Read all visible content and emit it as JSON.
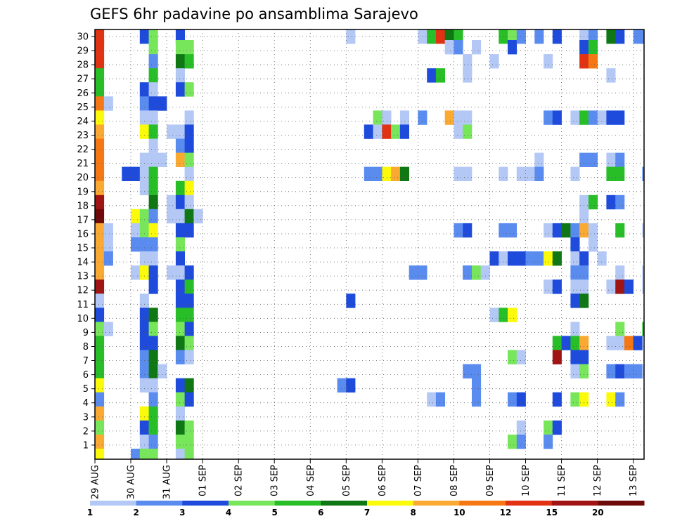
{
  "chart_data": {
    "type": "heatmap",
    "title": "GEFS 6hr padavine po ansamblima Sarajevo",
    "xlabel": "",
    "ylabel": "",
    "y_ticks": [
      "1",
      "2",
      "3",
      "4",
      "5",
      "6",
      "7",
      "8",
      "9",
      "10",
      "11",
      "12",
      "13",
      "14",
      "15",
      "16",
      "17",
      "18",
      "19",
      "20",
      "21",
      "22",
      "23",
      "24",
      "25",
      "26",
      "27",
      "28",
      "29",
      "30"
    ],
    "x_ticks": [
      "29 AUG",
      "30 AUG",
      "31 AUG",
      "01 SEP",
      "02 SEP",
      "03 SEP",
      "04 SEP",
      "05 SEP",
      "06 SEP",
      "07 SEP",
      "08 SEP",
      "09 SEP",
      "10 SEP",
      "11 SEP",
      "12 SEP",
      "13 SEP"
    ],
    "timesteps_per_day": 4,
    "num_steps": 61,
    "grid": true,
    "colorbar": {
      "labels": [
        "1",
        "2",
        "3",
        "4",
        "5",
        "6",
        "7",
        "8",
        "10",
        "12",
        "15",
        "20"
      ],
      "colors": [
        "#b4c8f5",
        "#5a8cf0",
        "#1e4bdc",
        "#78e65a",
        "#28be28",
        "#0f7814",
        "#fafa0a",
        "#faaa32",
        "#f57814",
        "#e13214",
        "#a01414",
        "#6e0a0a"
      ]
    },
    "level_colors": [
      "#b4c8f5",
      "#5a8cf0",
      "#1e4bdc",
      "#78e65a",
      "#28be28",
      "#0f7814",
      "#fafa0a",
      "#faaa32",
      "#f57814",
      "#e13214",
      "#a01414",
      "#6e0a0a"
    ],
    "cells": [
      [
        0,
        30,
        10
      ],
      [
        0,
        29,
        10
      ],
      [
        0,
        28,
        10
      ],
      [
        0,
        27,
        5
      ],
      [
        0,
        26,
        5
      ],
      [
        0,
        25,
        9
      ],
      [
        0,
        24,
        7
      ],
      [
        0,
        23,
        8
      ],
      [
        0,
        22,
        9
      ],
      [
        0,
        21,
        9
      ],
      [
        0,
        20,
        9
      ],
      [
        0,
        19,
        8
      ],
      [
        0,
        18,
        11
      ],
      [
        0,
        17,
        12
      ],
      [
        0,
        16,
        8
      ],
      [
        0,
        15,
        8
      ],
      [
        0,
        14,
        8
      ],
      [
        0,
        13,
        8
      ],
      [
        0,
        12,
        11
      ],
      [
        0,
        11,
        1
      ],
      [
        0,
        10,
        3
      ],
      [
        0,
        9,
        4
      ],
      [
        0,
        8,
        5
      ],
      [
        0,
        7,
        5
      ],
      [
        0,
        6,
        5
      ],
      [
        0,
        5,
        7
      ],
      [
        0,
        4,
        2
      ],
      [
        0,
        3,
        8
      ],
      [
        0,
        2,
        4
      ],
      [
        0,
        1,
        8
      ],
      [
        0,
        0,
        7
      ],
      [
        1,
        25,
        1
      ],
      [
        1,
        16,
        1
      ],
      [
        1,
        15,
        1
      ],
      [
        1,
        14,
        2
      ],
      [
        1,
        9,
        1
      ],
      [
        3,
        20,
        3
      ],
      [
        4,
        20,
        3
      ],
      [
        4,
        17,
        7
      ],
      [
        4,
        16,
        1
      ],
      [
        4,
        15,
        2
      ],
      [
        4,
        13,
        1
      ],
      [
        4,
        0,
        2
      ],
      [
        5,
        30,
        3
      ],
      [
        5,
        26,
        3
      ],
      [
        5,
        25,
        2
      ],
      [
        5,
        24,
        1
      ],
      [
        5,
        23,
        7
      ],
      [
        5,
        21,
        1
      ],
      [
        5,
        20,
        1
      ],
      [
        5,
        19,
        1
      ],
      [
        5,
        17,
        4
      ],
      [
        5,
        16,
        4
      ],
      [
        5,
        15,
        2
      ],
      [
        5,
        14,
        1
      ],
      [
        5,
        13,
        7
      ],
      [
        5,
        11,
        1
      ],
      [
        5,
        10,
        3
      ],
      [
        5,
        9,
        3
      ],
      [
        5,
        8,
        3
      ],
      [
        5,
        7,
        2
      ],
      [
        5,
        6,
        2
      ],
      [
        5,
        5,
        1
      ],
      [
        5,
        3,
        7
      ],
      [
        5,
        2,
        3
      ],
      [
        5,
        1,
        1
      ],
      [
        5,
        0,
        4
      ],
      [
        6,
        30,
        4
      ],
      [
        6,
        29,
        4
      ],
      [
        6,
        28,
        2
      ],
      [
        6,
        27,
        5
      ],
      [
        6,
        26,
        1
      ],
      [
        6,
        25,
        3
      ],
      [
        6,
        24,
        1
      ],
      [
        6,
        23,
        5
      ],
      [
        6,
        22,
        1
      ],
      [
        6,
        21,
        1
      ],
      [
        6,
        20,
        5
      ],
      [
        6,
        19,
        5
      ],
      [
        6,
        18,
        6
      ],
      [
        6,
        17,
        2
      ],
      [
        6,
        16,
        7
      ],
      [
        6,
        15,
        2
      ],
      [
        6,
        14,
        1
      ],
      [
        6,
        13,
        3
      ],
      [
        6,
        12,
        3
      ],
      [
        6,
        10,
        6
      ],
      [
        6,
        9,
        4
      ],
      [
        6,
        8,
        3
      ],
      [
        6,
        7,
        6
      ],
      [
        6,
        6,
        6
      ],
      [
        6,
        5,
        1
      ],
      [
        6,
        4,
        2
      ],
      [
        6,
        3,
        5
      ],
      [
        6,
        2,
        5
      ],
      [
        6,
        1,
        2
      ],
      [
        6,
        0,
        4
      ],
      [
        7,
        25,
        3
      ],
      [
        7,
        21,
        1
      ],
      [
        7,
        6,
        1
      ],
      [
        8,
        23,
        1
      ],
      [
        8,
        18,
        1
      ],
      [
        8,
        17,
        1
      ],
      [
        8,
        13,
        1
      ],
      [
        9,
        30,
        3
      ],
      [
        9,
        29,
        4
      ],
      [
        9,
        28,
        6
      ],
      [
        9,
        27,
        1
      ],
      [
        9,
        26,
        3
      ],
      [
        9,
        23,
        1
      ],
      [
        9,
        22,
        2
      ],
      [
        9,
        21,
        8
      ],
      [
        9,
        19,
        5
      ],
      [
        9,
        18,
        3
      ],
      [
        9,
        17,
        1
      ],
      [
        9,
        16,
        3
      ],
      [
        9,
        15,
        4
      ],
      [
        9,
        14,
        3
      ],
      [
        9,
        13,
        1
      ],
      [
        9,
        12,
        3
      ],
      [
        9,
        11,
        3
      ],
      [
        9,
        10,
        5
      ],
      [
        9,
        9,
        4
      ],
      [
        9,
        8,
        6
      ],
      [
        9,
        7,
        2
      ],
      [
        9,
        5,
        3
      ],
      [
        9,
        4,
        4
      ],
      [
        9,
        3,
        1
      ],
      [
        9,
        2,
        6
      ],
      [
        9,
        1,
        4
      ],
      [
        9,
        0,
        1
      ],
      [
        10,
        29,
        4
      ],
      [
        10,
        28,
        5
      ],
      [
        10,
        26,
        4
      ],
      [
        10,
        24,
        1
      ],
      [
        10,
        23,
        3
      ],
      [
        10,
        22,
        3
      ],
      [
        10,
        21,
        4
      ],
      [
        10,
        20,
        1
      ],
      [
        10,
        19,
        7
      ],
      [
        10,
        18,
        1
      ],
      [
        10,
        17,
        6
      ],
      [
        10,
        16,
        3
      ],
      [
        10,
        13,
        3
      ],
      [
        10,
        12,
        5
      ],
      [
        10,
        11,
        3
      ],
      [
        10,
        10,
        5
      ],
      [
        10,
        9,
        3
      ],
      [
        10,
        8,
        4
      ],
      [
        10,
        7,
        1
      ],
      [
        10,
        5,
        6
      ],
      [
        10,
        4,
        3
      ],
      [
        10,
        2,
        4
      ],
      [
        10,
        1,
        4
      ],
      [
        10,
        0,
        4
      ],
      [
        11,
        17,
        1
      ],
      [
        27,
        5,
        2
      ],
      [
        28,
        30,
        1
      ],
      [
        28,
        11,
        3
      ],
      [
        28,
        5,
        3
      ],
      [
        30,
        23,
        3
      ],
      [
        30,
        20,
        2
      ],
      [
        31,
        24,
        4
      ],
      [
        31,
        23,
        1
      ],
      [
        31,
        20,
        2
      ],
      [
        32,
        24,
        1
      ],
      [
        32,
        23,
        10
      ],
      [
        32,
        20,
        7
      ],
      [
        33,
        23,
        4
      ],
      [
        33,
        20,
        8
      ],
      [
        34,
        24,
        1
      ],
      [
        34,
        23,
        3
      ],
      [
        34,
        20,
        6
      ],
      [
        35,
        13,
        2
      ],
      [
        36,
        30,
        1
      ],
      [
        36,
        24,
        2
      ],
      [
        36,
        13,
        2
      ],
      [
        37,
        30,
        5
      ],
      [
        37,
        27,
        3
      ],
      [
        37,
        4,
        1
      ],
      [
        38,
        30,
        10
      ],
      [
        38,
        27,
        5
      ],
      [
        38,
        4,
        2
      ],
      [
        39,
        30,
        6
      ],
      [
        39,
        29,
        1
      ],
      [
        39,
        24,
        8
      ],
      [
        40,
        30,
        5
      ],
      [
        40,
        29,
        2
      ],
      [
        40,
        24,
        1
      ],
      [
        40,
        23,
        1
      ],
      [
        40,
        20,
        1
      ],
      [
        40,
        16,
        2
      ],
      [
        41,
        28,
        1
      ],
      [
        41,
        27,
        1
      ],
      [
        41,
        24,
        1
      ],
      [
        41,
        23,
        4
      ],
      [
        41,
        20,
        1
      ],
      [
        41,
        16,
        3
      ],
      [
        41,
        13,
        2
      ],
      [
        41,
        13,
        2
      ],
      [
        41,
        6,
        2
      ],
      [
        42,
        29,
        1
      ],
      [
        42,
        13,
        4
      ],
      [
        42,
        6,
        2
      ],
      [
        42,
        5,
        2
      ],
      [
        42,
        4,
        2
      ],
      [
        43,
        13,
        1
      ],
      [
        44,
        28,
        1
      ],
      [
        44,
        14,
        3
      ],
      [
        44,
        10,
        1
      ],
      [
        45,
        30,
        5
      ],
      [
        45,
        20,
        1
      ],
      [
        45,
        16,
        2
      ],
      [
        45,
        14,
        1
      ],
      [
        45,
        10,
        5
      ],
      [
        46,
        30,
        4
      ],
      [
        46,
        29,
        3
      ],
      [
        46,
        16,
        2
      ],
      [
        46,
        14,
        3
      ],
      [
        46,
        10,
        7
      ],
      [
        46,
        7,
        4
      ],
      [
        46,
        4,
        2
      ],
      [
        46,
        1,
        4
      ],
      [
        47,
        30,
        2
      ],
      [
        47,
        20,
        1
      ],
      [
        47,
        14,
        3
      ],
      [
        47,
        7,
        1
      ],
      [
        47,
        4,
        3
      ],
      [
        47,
        2,
        1
      ],
      [
        47,
        1,
        2
      ],
      [
        48,
        20,
        1
      ],
      [
        48,
        14,
        2
      ],
      [
        49,
        30,
        2
      ],
      [
        49,
        21,
        1
      ],
      [
        49,
        20,
        2
      ],
      [
        49,
        14,
        2
      ],
      [
        50,
        28,
        1
      ],
      [
        50,
        24,
        2
      ],
      [
        50,
        14,
        7
      ],
      [
        50,
        16,
        1
      ],
      [
        50,
        12,
        1
      ],
      [
        50,
        2,
        4
      ],
      [
        50,
        1,
        2
      ],
      [
        51,
        30,
        3
      ],
      [
        51,
        24,
        3
      ],
      [
        51,
        16,
        3
      ],
      [
        51,
        14,
        6
      ],
      [
        51,
        12,
        3
      ],
      [
        51,
        8,
        5
      ],
      [
        51,
        7,
        11
      ],
      [
        51,
        4,
        3
      ],
      [
        51,
        2,
        3
      ],
      [
        52,
        16,
        6
      ],
      [
        52,
        8,
        3
      ],
      [
        53,
        24,
        1
      ],
      [
        53,
        20,
        1
      ],
      [
        53,
        16,
        2
      ],
      [
        53,
        15,
        3
      ],
      [
        53,
        14,
        1
      ],
      [
        53,
        13,
        2
      ],
      [
        53,
        12,
        1
      ],
      [
        53,
        11,
        3
      ],
      [
        53,
        9,
        1
      ],
      [
        53,
        8,
        5
      ],
      [
        53,
        7,
        3
      ],
      [
        53,
        6,
        1
      ],
      [
        53,
        4,
        4
      ],
      [
        54,
        30,
        1
      ],
      [
        54,
        29,
        3
      ],
      [
        54,
        28,
        10
      ],
      [
        54,
        24,
        5
      ],
      [
        54,
        21,
        2
      ],
      [
        54,
        18,
        1
      ],
      [
        54,
        17,
        1
      ],
      [
        54,
        16,
        8
      ],
      [
        54,
        14,
        3
      ],
      [
        54,
        13,
        2
      ],
      [
        54,
        12,
        1
      ],
      [
        54,
        11,
        6
      ],
      [
        54,
        8,
        8
      ],
      [
        54,
        7,
        3
      ],
      [
        54,
        6,
        4
      ],
      [
        54,
        4,
        7
      ],
      [
        55,
        30,
        2
      ],
      [
        55,
        29,
        5
      ],
      [
        55,
        28,
        9
      ],
      [
        55,
        24,
        2
      ],
      [
        55,
        21,
        2
      ],
      [
        55,
        18,
        5
      ],
      [
        55,
        16,
        1
      ],
      [
        55,
        15,
        1
      ],
      [
        56,
        24,
        1
      ],
      [
        56,
        14,
        1
      ],
      [
        57,
        30,
        6
      ],
      [
        57,
        27,
        1
      ],
      [
        57,
        24,
        3
      ],
      [
        57,
        21,
        1
      ],
      [
        57,
        20,
        5
      ],
      [
        57,
        18,
        3
      ],
      [
        57,
        12,
        1
      ],
      [
        57,
        8,
        1
      ],
      [
        57,
        6,
        2
      ],
      [
        57,
        4,
        7
      ],
      [
        58,
        30,
        3
      ],
      [
        58,
        24,
        3
      ],
      [
        58,
        21,
        2
      ],
      [
        58,
        20,
        5
      ],
      [
        58,
        18,
        2
      ],
      [
        58,
        16,
        5
      ],
      [
        58,
        13,
        1
      ],
      [
        58,
        12,
        11
      ],
      [
        58,
        9,
        4
      ],
      [
        58,
        8,
        1
      ],
      [
        58,
        6,
        3
      ],
      [
        58,
        4,
        2
      ],
      [
        59,
        12,
        3
      ],
      [
        59,
        8,
        9
      ],
      [
        59,
        6,
        2
      ],
      [
        60,
        30,
        2
      ],
      [
        60,
        8,
        3
      ],
      [
        60,
        6,
        2
      ],
      [
        61,
        30,
        2
      ],
      [
        61,
        20,
        2
      ],
      [
        61,
        16,
        1
      ],
      [
        61,
        13,
        1
      ],
      [
        61,
        12,
        1
      ],
      [
        61,
        9,
        5
      ],
      [
        61,
        6,
        1
      ],
      [
        61,
        6,
        1
      ],
      [
        62,
        30,
        2
      ],
      [
        62,
        21,
        1
      ],
      [
        62,
        20,
        5
      ],
      [
        62,
        16,
        6
      ],
      [
        62,
        13,
        4
      ],
      [
        62,
        12,
        2
      ],
      [
        62,
        9,
        3
      ],
      [
        63,
        9,
        2
      ]
    ]
  }
}
